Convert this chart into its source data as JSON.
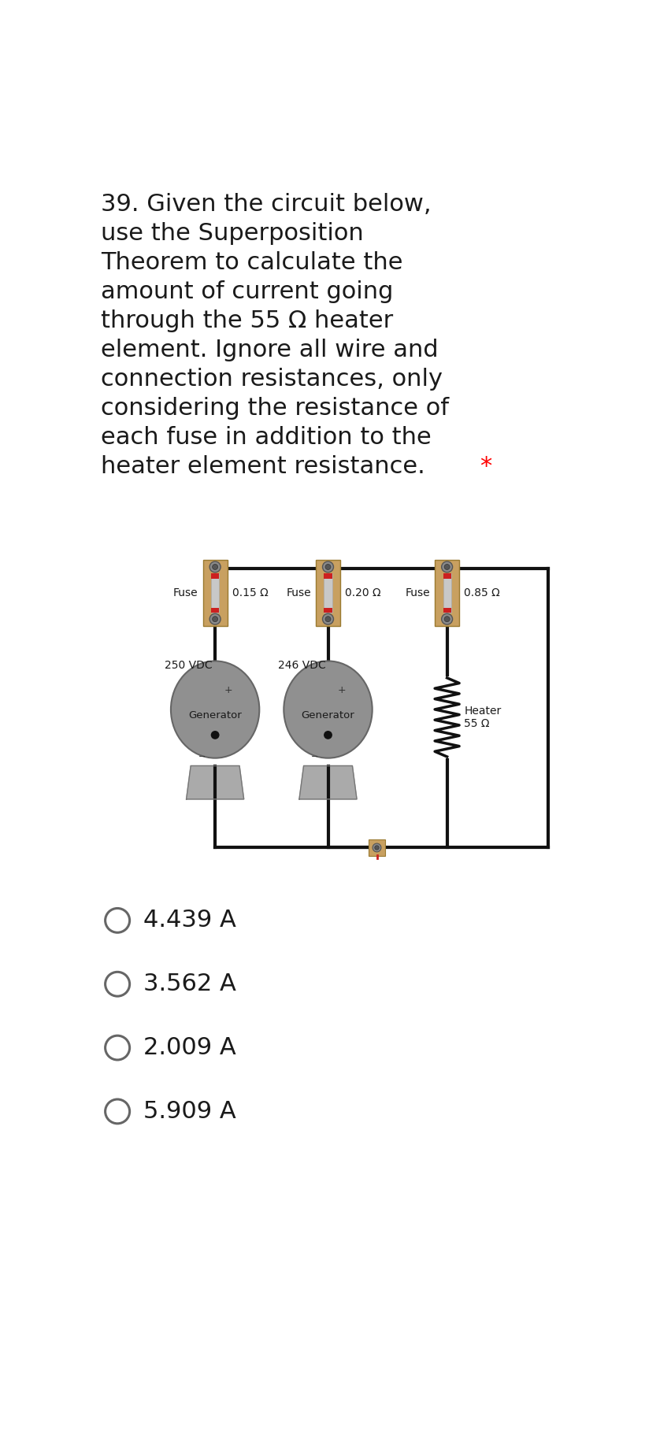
{
  "question_lines": [
    "39. Given the circuit below,",
    "use the Superposition",
    "Theorem to calculate the",
    "amount of current going",
    "through the 55 Ω heater",
    "element. Ignore all wire and",
    "connection resistances, only",
    "considering the resistance of",
    "each fuse in addition to the",
    "heater element resistance."
  ],
  "asterisk": "*",
  "fuse_labels": [
    "Fuse",
    "Fuse",
    "Fuse"
  ],
  "fuse_resistances": [
    "0.15 Ω",
    "0.20 Ω",
    "0.85 Ω"
  ],
  "voltages": [
    "250 VDC",
    "246 VDC"
  ],
  "generator_labels": [
    "Generator",
    "Generator"
  ],
  "heater_label": "Heater\n55 Ω",
  "choices": [
    "4.439 A",
    "3.562 A",
    "2.009 A",
    "5.909 A"
  ],
  "bg_color": "#ffffff",
  "text_color": "#1a1a1a",
  "fuse_box_color": "#c8a060",
  "wire_color": "#111111",
  "generator_body_color": "#909090",
  "generator_base_color": "#a0a0a0",
  "radio_color": "#666666",
  "bolt_outer_color": "#8a8a8a",
  "bolt_inner_color": "#555555",
  "red_cap_color": "#cc2020",
  "fuse_elem_color": "#c8c8c8"
}
